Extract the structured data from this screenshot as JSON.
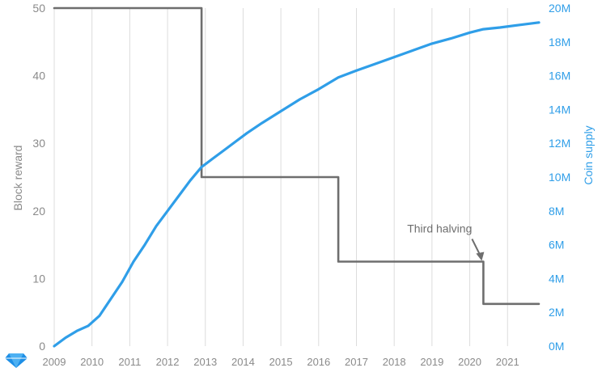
{
  "chart_data": {
    "type": "line",
    "title": "",
    "xlabel": "",
    "ylabel_left": "Block reward",
    "ylabel_right": "Coin supply",
    "x_ticks": [
      "2009",
      "2010",
      "2011",
      "2012",
      "2013",
      "2014",
      "2015",
      "2016",
      "2017",
      "2018",
      "2019",
      "2020",
      "2021"
    ],
    "y_left_ticks": [
      "0",
      "10",
      "20",
      "30",
      "40",
      "50"
    ],
    "y_right_ticks": [
      "0M",
      "2M",
      "4M",
      "6M",
      "8M",
      "10M",
      "12M",
      "14M",
      "16M",
      "18M",
      "20M"
    ],
    "xlim": [
      2009.0,
      2021.83
    ],
    "ylim_left": [
      0,
      50
    ],
    "ylim_right": [
      0,
      20
    ],
    "grid": "vertical",
    "series": [
      {
        "name": "Block reward",
        "axis": "left",
        "style": "step",
        "color": "#6e6e6e",
        "x": [
          2009.0,
          2012.9,
          2012.9,
          2016.52,
          2016.52,
          2020.36,
          2020.36,
          2021.83
        ],
        "y": [
          50,
          50,
          25,
          25,
          12.5,
          12.5,
          6.25,
          6.25
        ]
      },
      {
        "name": "Coin supply",
        "axis": "right",
        "style": "line",
        "color": "#2f9ee8",
        "x": [
          2009.0,
          2009.3,
          2009.6,
          2009.9,
          2010.2,
          2010.5,
          2010.8,
          2011.1,
          2011.4,
          2011.7,
          2012.0,
          2012.3,
          2012.6,
          2012.9,
          2013.2,
          2013.5,
          2013.8,
          2014.1,
          2014.5,
          2015.0,
          2015.5,
          2016.0,
          2016.52,
          2017.0,
          2017.5,
          2018.0,
          2018.5,
          2019.0,
          2019.5,
          2020.0,
          2020.36,
          2020.8,
          2021.3,
          2021.83
        ],
        "y": [
          0.0,
          0.5,
          0.9,
          1.2,
          1.8,
          2.8,
          3.8,
          5.0,
          6.0,
          7.1,
          8.0,
          8.9,
          9.8,
          10.6,
          11.1,
          11.6,
          12.1,
          12.6,
          13.2,
          13.9,
          14.6,
          15.2,
          15.9,
          16.3,
          16.7,
          17.1,
          17.5,
          17.9,
          18.2,
          18.55,
          18.75,
          18.85,
          19.0,
          19.15
        ]
      }
    ],
    "annotations": [
      {
        "text": "Third halving",
        "x": 2020.36,
        "y": 12.5,
        "axis": "left"
      }
    ]
  }
}
